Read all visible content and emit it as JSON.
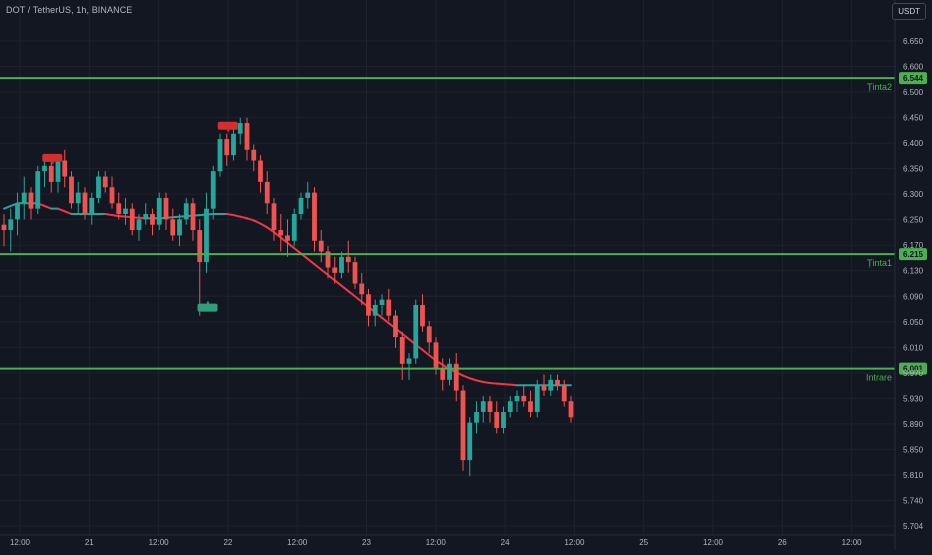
{
  "header": {
    "symbol": "DOT / TetherUS, 1h, BINANCE",
    "currency": "USDT"
  },
  "colors": {
    "background": "#131722",
    "up": "#26a69a",
    "down": "#ef5350",
    "level_line": "#4caf50",
    "axis_text": "#b2b5be",
    "ma_up": "#26a69a",
    "ma_down": "#f23645"
  },
  "chart_data": {
    "type": "candlestick",
    "price_axis": {
      "range": [
        5.69,
        6.69
      ],
      "ticks": [
        "6.650",
        "6.600",
        "6.500",
        "6.450",
        "6.400",
        "6.350",
        "6.300",
        "6.250",
        "6.170",
        "6.130",
        "6.090",
        "6.050",
        "6.010",
        "5.970",
        "5.930",
        "5.890",
        "5.850",
        "5.810",
        "5.740",
        "5.704"
      ]
    },
    "time_axis": {
      "labels": [
        "12:00",
        "21",
        "12:00",
        "22",
        "12:00",
        "23",
        "12:00",
        "24",
        "12:00",
        "25",
        "12:00",
        "26",
        "12:00"
      ]
    },
    "levels": [
      {
        "name": "Ținta2",
        "value": "6.544"
      },
      {
        "name": "Ținta1",
        "value": "6.215"
      },
      {
        "name": "Intrare",
        "value": "6.001"
      }
    ],
    "candles": [
      [
        6.27,
        6.29,
        6.23,
        6.26
      ],
      [
        6.26,
        6.3,
        6.22,
        6.28
      ],
      [
        6.28,
        6.33,
        6.25,
        6.31
      ],
      [
        6.31,
        6.36,
        6.28,
        6.33
      ],
      [
        6.33,
        6.34,
        6.28,
        6.3
      ],
      [
        6.3,
        6.38,
        6.29,
        6.37
      ],
      [
        6.37,
        6.4,
        6.34,
        6.38
      ],
      [
        6.38,
        6.39,
        6.33,
        6.35
      ],
      [
        6.35,
        6.4,
        6.33,
        6.39
      ],
      [
        6.39,
        6.41,
        6.34,
        6.36
      ],
      [
        6.36,
        6.37,
        6.3,
        6.31
      ],
      [
        6.31,
        6.35,
        6.29,
        6.33
      ],
      [
        6.33,
        6.34,
        6.28,
        6.29
      ],
      [
        6.29,
        6.33,
        6.27,
        6.32
      ],
      [
        6.32,
        6.37,
        6.31,
        6.36
      ],
      [
        6.36,
        6.37,
        6.33,
        6.34
      ],
      [
        6.34,
        6.36,
        6.3,
        6.31
      ],
      [
        6.31,
        6.33,
        6.28,
        6.29
      ],
      [
        6.29,
        6.32,
        6.27,
        6.3
      ],
      [
        6.3,
        6.31,
        6.25,
        6.26
      ],
      [
        6.26,
        6.29,
        6.24,
        6.28
      ],
      [
        6.28,
        6.31,
        6.27,
        6.29
      ],
      [
        6.29,
        6.3,
        6.25,
        6.27
      ],
      [
        6.27,
        6.33,
        6.26,
        6.32
      ],
      [
        6.32,
        6.33,
        6.26,
        6.28
      ],
      [
        6.28,
        6.3,
        6.24,
        6.25
      ],
      [
        6.25,
        6.29,
        6.23,
        6.28
      ],
      [
        6.28,
        6.32,
        6.27,
        6.31
      ],
      [
        6.31,
        6.32,
        6.24,
        6.26
      ],
      [
        6.26,
        6.28,
        6.1,
        6.2
      ],
      [
        6.2,
        6.33,
        6.18,
        6.3
      ],
      [
        6.3,
        6.38,
        6.28,
        6.37
      ],
      [
        6.37,
        6.44,
        6.36,
        6.43
      ],
      [
        6.43,
        6.44,
        6.38,
        6.4
      ],
      [
        6.4,
        6.45,
        6.39,
        6.44
      ],
      [
        6.44,
        6.47,
        6.42,
        6.46
      ],
      [
        6.46,
        6.47,
        6.39,
        6.41
      ],
      [
        6.41,
        6.42,
        6.37,
        6.39
      ],
      [
        6.39,
        6.4,
        6.33,
        6.35
      ],
      [
        6.35,
        6.37,
        6.29,
        6.31
      ],
      [
        6.31,
        6.32,
        6.24,
        6.26
      ],
      [
        6.26,
        6.29,
        6.22,
        6.25
      ],
      [
        6.25,
        6.28,
        6.21,
        6.24
      ],
      [
        6.24,
        6.3,
        6.23,
        6.29
      ],
      [
        6.29,
        6.33,
        6.28,
        6.32
      ],
      [
        6.32,
        6.35,
        6.3,
        6.33
      ],
      [
        6.33,
        6.34,
        6.22,
        6.24
      ],
      [
        6.24,
        6.26,
        6.2,
        6.22
      ],
      [
        6.22,
        6.23,
        6.17,
        6.19
      ],
      [
        6.19,
        6.21,
        6.16,
        6.18
      ],
      [
        6.18,
        6.22,
        6.17,
        6.21
      ],
      [
        6.21,
        6.24,
        6.18,
        6.2
      ],
      [
        6.2,
        6.21,
        6.15,
        6.16
      ],
      [
        6.16,
        6.18,
        6.12,
        6.14
      ],
      [
        6.14,
        6.15,
        6.08,
        6.1
      ],
      [
        6.1,
        6.13,
        6.08,
        6.12
      ],
      [
        6.12,
        6.14,
        6.1,
        6.13
      ],
      [
        6.13,
        6.15,
        6.09,
        6.1
      ],
      [
        6.1,
        6.11,
        6.04,
        6.06
      ],
      [
        6.06,
        6.07,
        5.98,
        6.01
      ],
      [
        6.01,
        6.03,
        5.98,
        6.02
      ],
      [
        6.02,
        6.13,
        6.01,
        6.12
      ],
      [
        6.12,
        6.14,
        6.07,
        6.08
      ],
      [
        6.08,
        6.09,
        6.03,
        6.05
      ],
      [
        6.05,
        6.06,
        5.99,
        6.0
      ],
      [
        6.0,
        6.02,
        5.96,
        5.98
      ],
      [
        5.98,
        6.02,
        5.97,
        6.01
      ],
      [
        6.01,
        6.03,
        5.94,
        5.96
      ],
      [
        5.96,
        5.97,
        5.81,
        5.83
      ],
      [
        5.83,
        5.91,
        5.8,
        5.9
      ],
      [
        5.9,
        5.94,
        5.88,
        5.92
      ],
      [
        5.92,
        5.95,
        5.9,
        5.94
      ],
      [
        5.94,
        5.95,
        5.9,
        5.92
      ],
      [
        5.92,
        5.94,
        5.88,
        5.89
      ],
      [
        5.89,
        5.93,
        5.88,
        5.92
      ],
      [
        5.92,
        5.95,
        5.91,
        5.94
      ],
      [
        5.94,
        5.96,
        5.92,
        5.95
      ],
      [
        5.95,
        5.97,
        5.93,
        5.94
      ],
      [
        5.94,
        5.96,
        5.91,
        5.92
      ],
      [
        5.92,
        5.98,
        5.91,
        5.97
      ],
      [
        5.97,
        5.99,
        5.95,
        5.96
      ],
      [
        5.96,
        5.99,
        5.95,
        5.98
      ],
      [
        5.98,
        5.99,
        5.96,
        5.97
      ],
      [
        5.97,
        5.98,
        5.93,
        5.94
      ],
      [
        5.94,
        5.95,
        5.9,
        5.91
      ]
    ],
    "moving_average": [
      6.3,
      6.305,
      6.31,
      6.31,
      6.31,
      6.31,
      6.305,
      6.3,
      6.3,
      6.295,
      6.29,
      6.29,
      6.29,
      6.29,
      6.29,
      6.29,
      6.288,
      6.286,
      6.285,
      6.284,
      6.283,
      6.282,
      6.282,
      6.282,
      6.283,
      6.284,
      6.285,
      6.286,
      6.287,
      6.288,
      6.289,
      6.29,
      6.29,
      6.29,
      6.288,
      6.285,
      6.282,
      6.278,
      6.272,
      6.265,
      6.256,
      6.246,
      6.236,
      6.226,
      6.216,
      6.206,
      6.196,
      6.186,
      6.176,
      6.166,
      6.156,
      6.146,
      6.136,
      6.126,
      6.116,
      6.106,
      6.096,
      6.086,
      6.076,
      6.066,
      6.056,
      6.046,
      6.036,
      6.026,
      6.016,
      6.008,
      6.0,
      5.994,
      5.988,
      5.983,
      5.979,
      5.976,
      5.974,
      5.973,
      5.972,
      5.971,
      5.97,
      5.97,
      5.97,
      5.97,
      5.97,
      5.97,
      5.97,
      5.97,
      5.97
    ],
    "signals": [
      {
        "kind": "sell",
        "candle": 7,
        "price": 6.395
      },
      {
        "kind": "sell",
        "candle": 33,
        "price": 6.455
      },
      {
        "kind": "buy",
        "candle": 30,
        "price": 6.115
      }
    ]
  }
}
